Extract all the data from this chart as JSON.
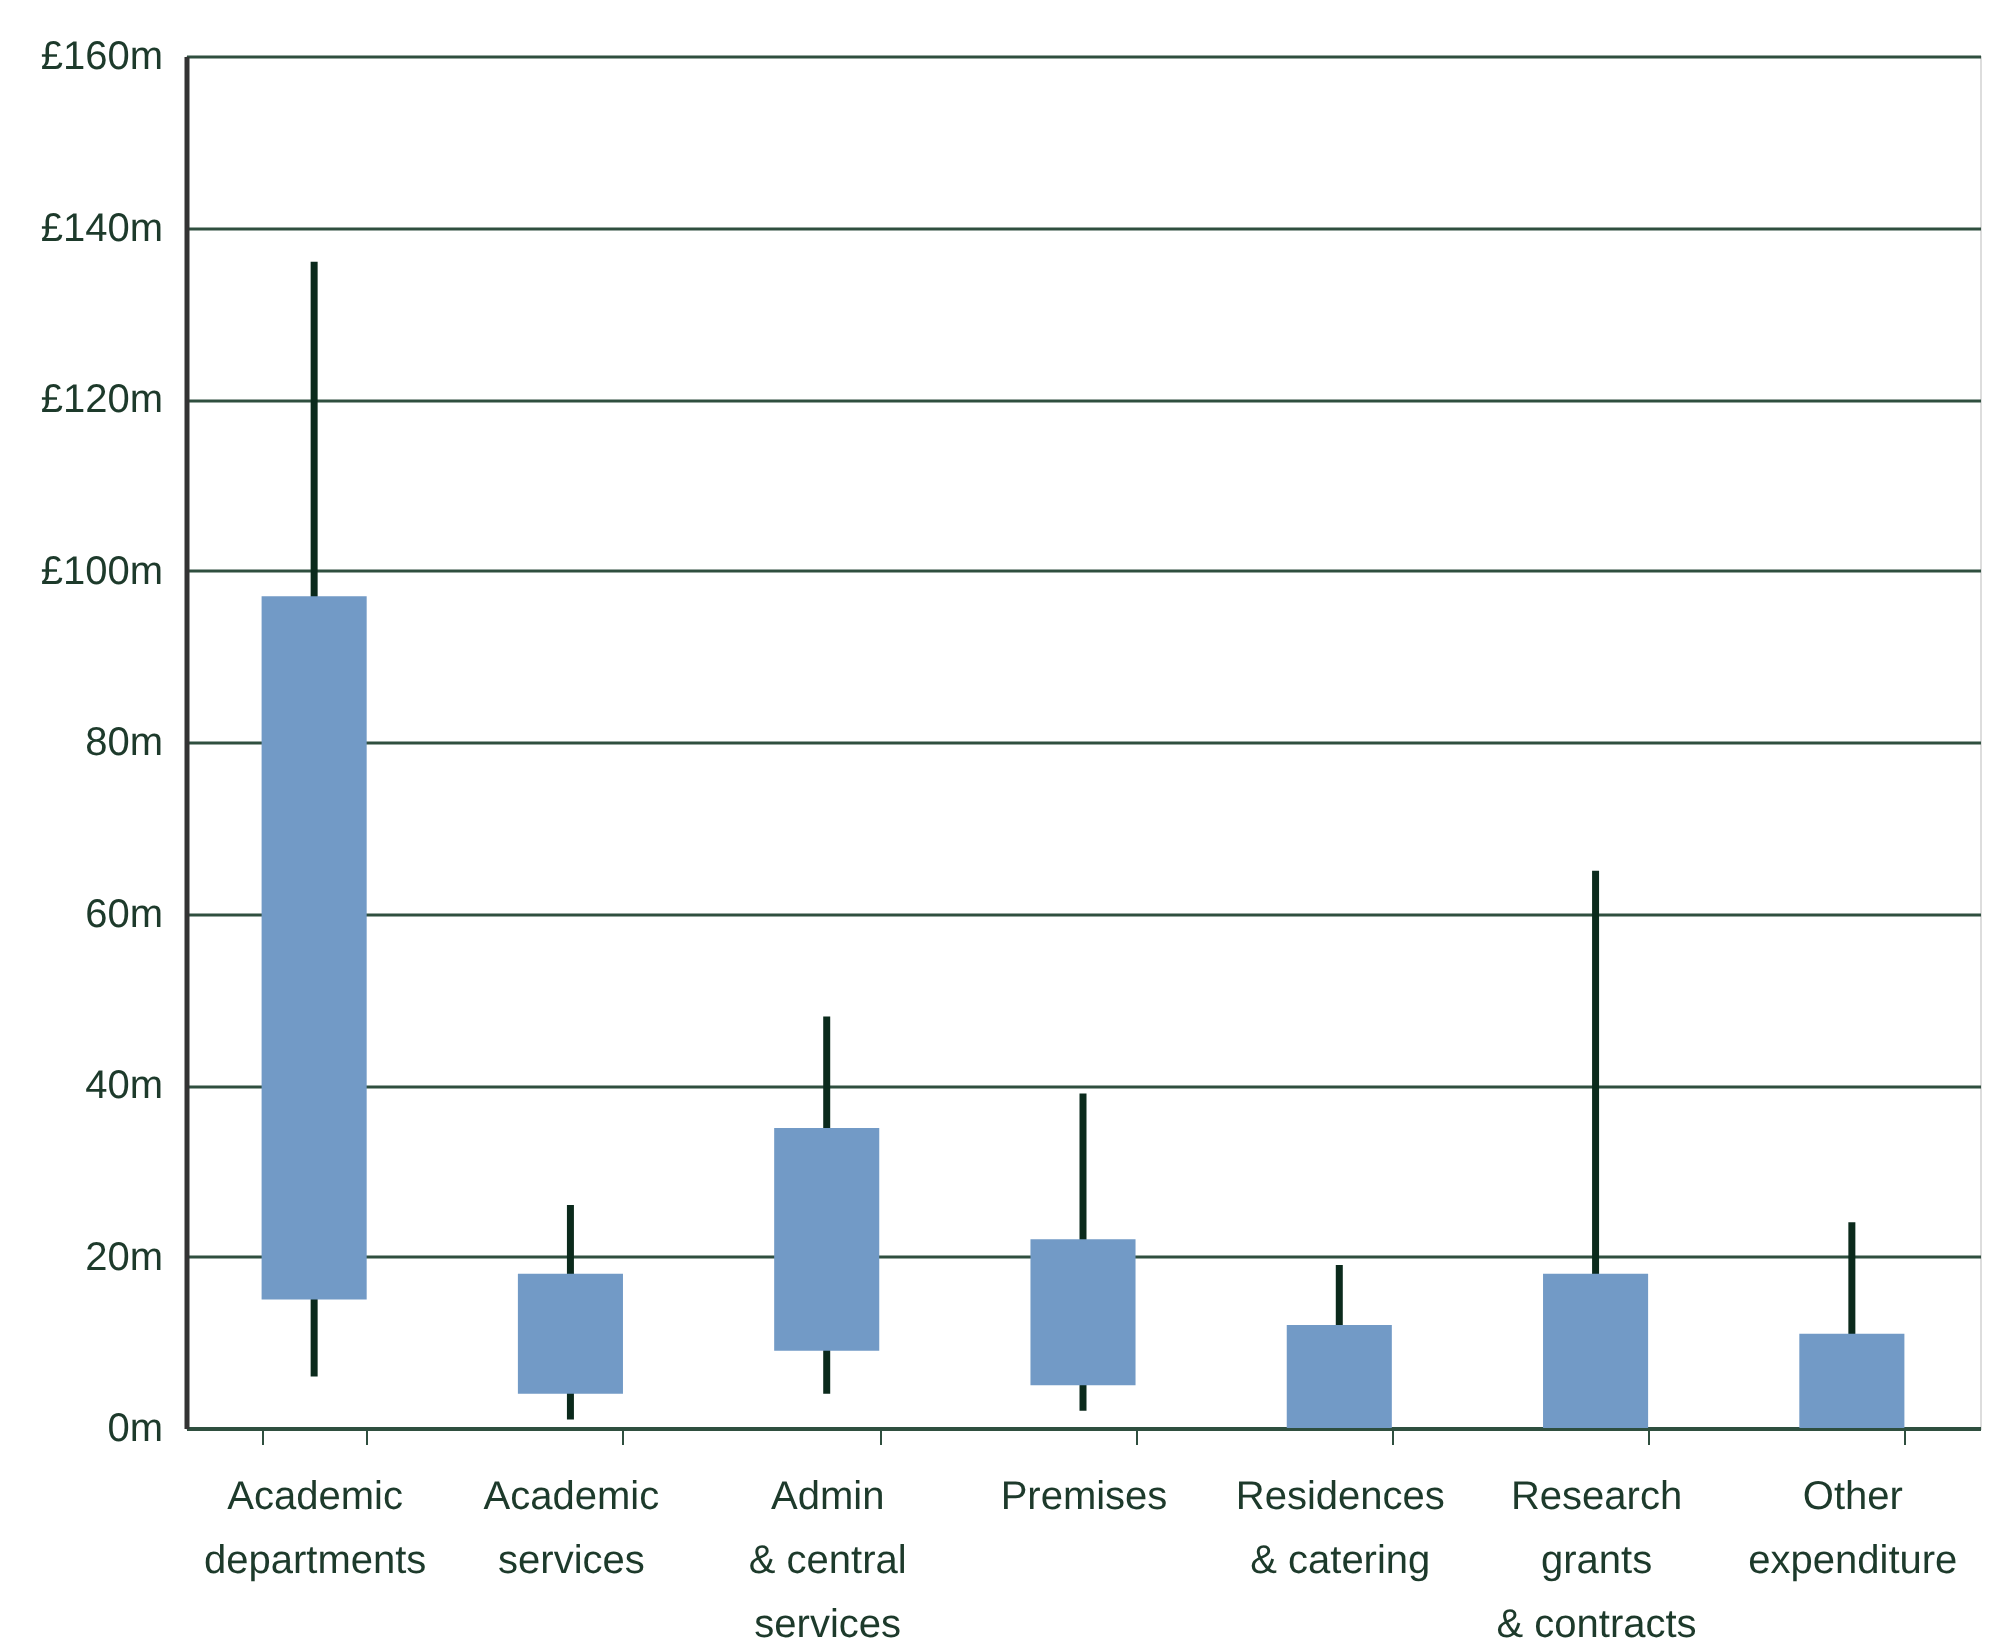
{
  "chart_data": {
    "type": "box",
    "categories": [
      "Academic\ndepartments",
      "Academic\nservices",
      "Admin\n& central\nservices",
      "Premises",
      "Residences\n& catering",
      "Research\ngrants\n& contracts",
      "Other\nexpenditure"
    ],
    "series": [
      {
        "color": "#729ac6",
        "boxes": [
          {
            "low": 6,
            "q1": 15,
            "q3": 97,
            "high": 136
          },
          {
            "low": 1,
            "q1": 4,
            "q3": 18,
            "high": 26
          },
          {
            "low": 4,
            "q1": 9,
            "q3": 35,
            "high": 48
          },
          {
            "low": 2,
            "q1": 5,
            "q3": 22,
            "high": 39
          },
          {
            "low": 0,
            "q1": 0,
            "q3": 12,
            "high": 19
          },
          {
            "low": 0,
            "q1": 0,
            "q3": 18,
            "high": 65
          },
          {
            "low": 0,
            "q1": 0,
            "q3": 11,
            "high": 24
          }
        ]
      }
    ],
    "ylim": [
      0,
      160
    ],
    "yticks": [
      {
        "value": 0,
        "label": "0m"
      },
      {
        "value": 20,
        "label": "20m"
      },
      {
        "value": 40,
        "label": "40m"
      },
      {
        "value": 60,
        "label": "60m"
      },
      {
        "value": 80,
        "label": "80m"
      },
      {
        "value": 100,
        "label": "£100m"
      },
      {
        "value": 120,
        "label": "£120m"
      },
      {
        "value": 140,
        "label": "£140m"
      },
      {
        "value": 160,
        "label": "£160m"
      }
    ],
    "grid": "y"
  }
}
